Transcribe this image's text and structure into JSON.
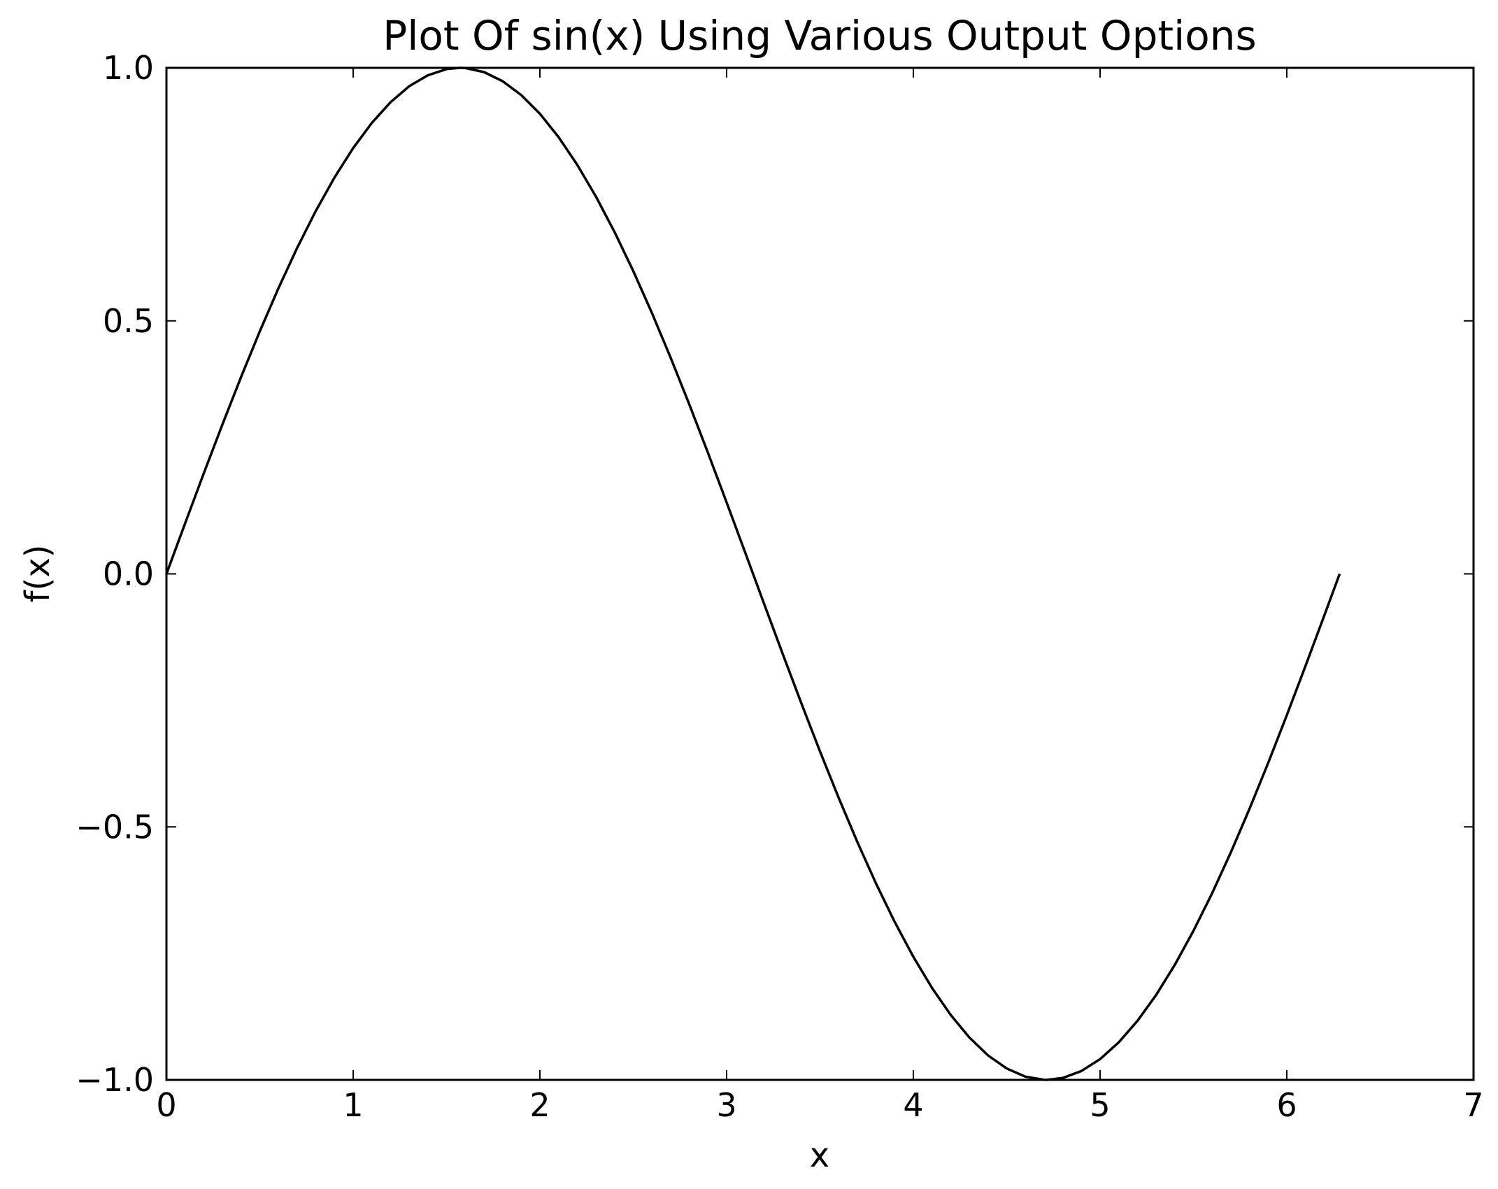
{
  "chart_data": {
    "type": "line",
    "title": "Plot Of sin(x) Using Various Output Options",
    "xlabel": "x",
    "ylabel": "f(x)",
    "xlim": [
      0,
      7
    ],
    "ylim": [
      -1.0,
      1.0
    ],
    "xticks": [
      0,
      1,
      2,
      3,
      4,
      5,
      6,
      7
    ],
    "xtick_labels": [
      "0",
      "1",
      "2",
      "3",
      "4",
      "5",
      "6",
      "7"
    ],
    "yticks": [
      -1.0,
      -0.5,
      0.0,
      0.5,
      1.0
    ],
    "ytick_labels": [
      "−1.0",
      "−0.5",
      "0.0",
      "0.5",
      "1.0"
    ],
    "grid": false,
    "line_color": "#000000",
    "series": [
      {
        "x": [
          0,
          0.1,
          0.2,
          0.3,
          0.4,
          0.5,
          0.6,
          0.7,
          0.8,
          0.9,
          1.0,
          1.1,
          1.2,
          1.3,
          1.4,
          1.5,
          1.5708,
          1.6,
          1.7,
          1.8,
          1.9,
          2.0,
          2.1,
          2.2,
          2.3,
          2.4,
          2.5,
          2.6,
          2.7,
          2.8,
          2.9,
          3.0,
          3.1,
          3.1416,
          3.2,
          3.3,
          3.4,
          3.5,
          3.6,
          3.7,
          3.8,
          3.9,
          4.0,
          4.1,
          4.2,
          4.3,
          4.4,
          4.5,
          4.6,
          4.7,
          4.7124,
          4.8,
          4.9,
          5.0,
          5.1,
          5.2,
          5.3,
          5.4,
          5.5,
          5.6,
          5.7,
          5.8,
          5.9,
          6.0,
          6.1,
          6.2,
          6.2832
        ],
        "y": [
          0.0,
          0.0998,
          0.1987,
          0.2955,
          0.3894,
          0.4794,
          0.5646,
          0.6442,
          0.7174,
          0.7833,
          0.8415,
          0.8912,
          0.932,
          0.9636,
          0.9854,
          0.9975,
          1.0,
          0.9996,
          0.9917,
          0.9738,
          0.9463,
          0.9093,
          0.8632,
          0.8085,
          0.7457,
          0.6755,
          0.5985,
          0.5155,
          0.4274,
          0.335,
          0.2392,
          0.1411,
          0.0416,
          0.0,
          -0.0584,
          -0.1577,
          -0.2555,
          -0.3508,
          -0.4425,
          -0.5298,
          -0.6119,
          -0.6878,
          -0.7568,
          -0.8183,
          -0.8716,
          -0.9162,
          -0.9516,
          -0.9775,
          -0.9937,
          -0.9999,
          -1.0,
          -0.9962,
          -0.9825,
          -0.9589,
          -0.9258,
          -0.8835,
          -0.8323,
          -0.7728,
          -0.7055,
          -0.6313,
          -0.5507,
          -0.4646,
          -0.3739,
          -0.2794,
          -0.1822,
          -0.0831,
          0.0
        ]
      }
    ]
  }
}
